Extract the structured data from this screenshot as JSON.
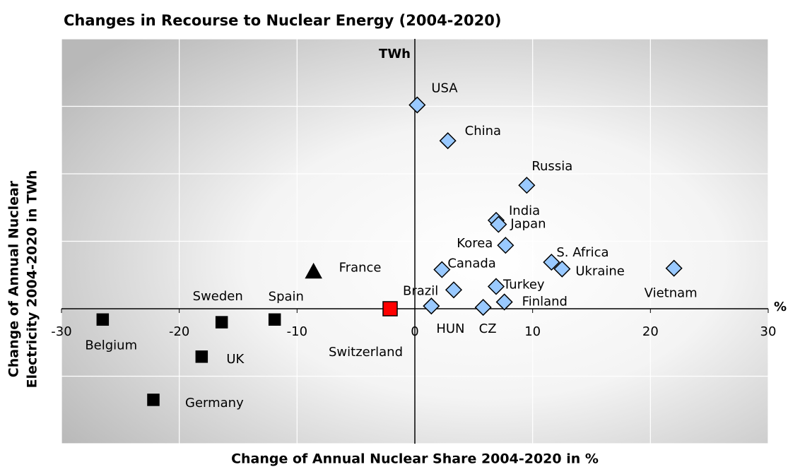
{
  "chart_data": {
    "type": "scatter",
    "title": "Changes in Recourse to Nuclear Energy (2004-2020)",
    "x_label": "Change of Annual Nuclear Share 2004-2020 in %",
    "y_label": [
      "Change of Annual Nuclear",
      "Electricity 2004-2020 in TWh"
    ],
    "y_unit": "TWh",
    "x_unit": "%",
    "xlim": [
      -30,
      30
    ],
    "xticks": [
      -30,
      -20,
      -10,
      0,
      10,
      20,
      30
    ],
    "ylim": [
      -200,
      400
    ],
    "yticks": [
      -200,
      -100,
      0,
      100,
      200,
      300,
      400
    ],
    "grid": true,
    "points": [
      {
        "label": "USA",
        "x": 0.2,
        "y": 302,
        "marker": "diamond",
        "color": "#99c9ff"
      },
      {
        "label": "China",
        "x": 2.8,
        "y": 249,
        "marker": "diamond",
        "color": "#99c9ff"
      },
      {
        "label": "Russia",
        "x": 9.5,
        "y": 183,
        "marker": "diamond",
        "color": "#99c9ff"
      },
      {
        "label": "India",
        "x": 6.9,
        "y": 131,
        "marker": "diamond",
        "color": "#99c9ff"
      },
      {
        "label": "Japan",
        "x": 7.1,
        "y": 125,
        "marker": "diamond",
        "color": "#99c9ff"
      },
      {
        "label": "Korea",
        "x": 7.7,
        "y": 94,
        "marker": "diamond",
        "color": "#99c9ff"
      },
      {
        "label": "S. Africa",
        "x": 11.6,
        "y": 69,
        "marker": "diamond",
        "color": "#99c9ff"
      },
      {
        "label": "Ukraine",
        "x": 12.5,
        "y": 59,
        "marker": "diamond",
        "color": "#99c9ff"
      },
      {
        "label": "Vietnam",
        "x": 22.0,
        "y": 60,
        "marker": "diamond",
        "color": "#99c9ff"
      },
      {
        "label": "Canada",
        "x": 2.3,
        "y": 58,
        "marker": "diamond",
        "color": "#99c9ff"
      },
      {
        "label": "Brazil",
        "x": 3.3,
        "y": 28,
        "marker": "diamond",
        "color": "#99c9ff"
      },
      {
        "label": "Turkey",
        "x": 6.9,
        "y": 33,
        "marker": "diamond",
        "color": "#99c9ff"
      },
      {
        "label": "Finland",
        "x": 7.6,
        "y": 10,
        "marker": "diamond",
        "color": "#99c9ff"
      },
      {
        "label": "HUN",
        "x": 1.4,
        "y": 4,
        "marker": "diamond",
        "color": "#99c9ff"
      },
      {
        "label": "CZ",
        "x": 5.8,
        "y": 2,
        "marker": "diamond",
        "color": "#99c9ff"
      },
      {
        "label": "France",
        "x": -8.6,
        "y": 55,
        "marker": "triangle",
        "color": "#000000"
      },
      {
        "label": "Switzerland",
        "x": -2.1,
        "y": 0,
        "marker": "square",
        "color": "#ff0000"
      },
      {
        "label": "Spain",
        "x": -11.9,
        "y": -16,
        "marker": "square",
        "color": "#000000"
      },
      {
        "label": "Sweden",
        "x": -16.4,
        "y": -20,
        "marker": "square",
        "color": "#000000"
      },
      {
        "label": "Belgium",
        "x": -26.5,
        "y": -16,
        "marker": "square",
        "color": "#000000"
      },
      {
        "label": "UK",
        "x": -18.1,
        "y": -71,
        "marker": "square",
        "color": "#000000"
      },
      {
        "label": "Germany",
        "x": -22.2,
        "y": -135,
        "marker": "square",
        "color": "#000000"
      }
    ]
  }
}
